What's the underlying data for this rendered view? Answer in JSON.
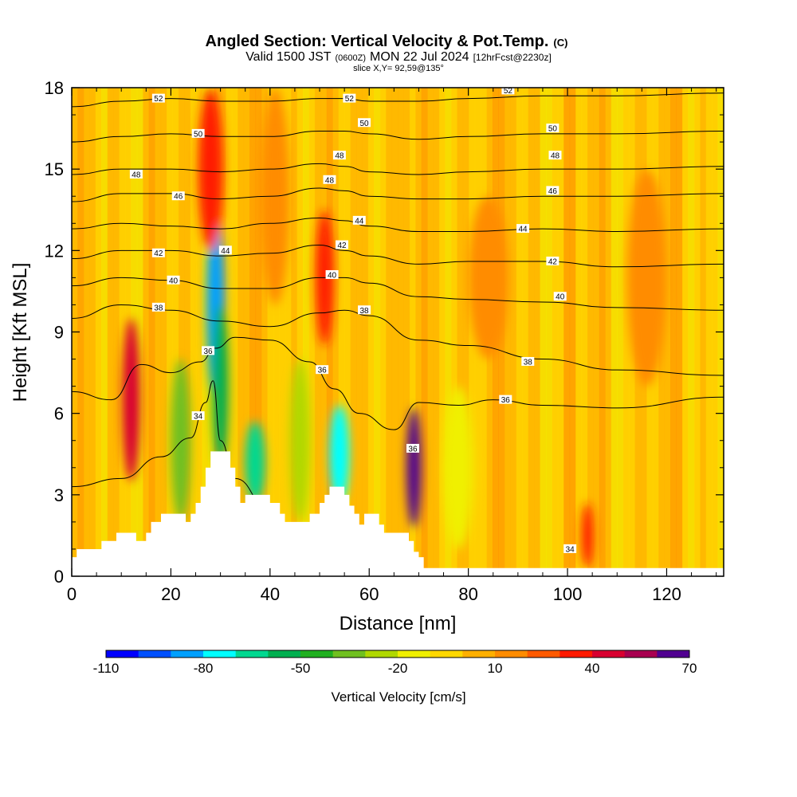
{
  "title": {
    "main": "Angled Section: Vertical Velocity & Pot.Temp.",
    "main_unit": "(C)",
    "valid_prefix": "Valid 1500 JST",
    "valid_utc": "(0600Z)",
    "valid_date": "MON 22 Jul 2024",
    "forecast": "[12hrFcst@2230z]",
    "slice": "slice X,Y= 92,59@135°"
  },
  "chart_data": {
    "type": "heatmap",
    "xlabel": "Distance [nm]",
    "ylabel": "Height [Kft MSL]",
    "xlim": [
      0,
      131.5
    ],
    "ylim": [
      0,
      18
    ],
    "x_ticks": [
      "0",
      "20",
      "40",
      "60",
      "80",
      "100",
      "120"
    ],
    "y_ticks": [
      "0",
      "3",
      "6",
      "9",
      "12",
      "15",
      "18"
    ],
    "colorbar": {
      "label": "Vertical Velocity [cm/s]",
      "tick_labels": [
        "-110",
        "-80",
        "-50",
        "-20",
        "10",
        "40",
        "70"
      ],
      "levels": [
        -110,
        -100,
        -90,
        -80,
        -70,
        -60,
        -50,
        -40,
        -30,
        -20,
        -10,
        0,
        10,
        20,
        30,
        40,
        50,
        60,
        70
      ],
      "colors": [
        "#0000ff",
        "#0050ff",
        "#00a0ff",
        "#00ffff",
        "#00d890",
        "#00b050",
        "#20b020",
        "#70c020",
        "#b0d800",
        "#f0f000",
        "#ffd800",
        "#ffb000",
        "#ff8c00",
        "#ff5a00",
        "#ff1a00",
        "#d80030",
        "#a80050",
        "#500090"
      ]
    },
    "terrain_kft": [
      [
        0,
        0.7
      ],
      [
        1,
        1.0
      ],
      [
        6,
        1.3
      ],
      [
        9,
        1.6
      ],
      [
        13,
        1.3
      ],
      [
        15,
        1.6
      ],
      [
        16,
        2.0
      ],
      [
        18,
        2.3
      ],
      [
        22,
        2.3
      ],
      [
        23,
        2.0
      ],
      [
        24,
        2.3
      ],
      [
        25,
        2.7
      ],
      [
        26,
        3.3
      ],
      [
        27,
        4.0
      ],
      [
        28,
        4.6
      ],
      [
        31,
        4.6
      ],
      [
        32,
        4.0
      ],
      [
        33,
        3.3
      ],
      [
        34,
        2.7
      ],
      [
        35,
        3.0
      ],
      [
        39,
        3.0
      ],
      [
        40,
        2.7
      ],
      [
        42,
        2.3
      ],
      [
        43,
        2.0
      ],
      [
        47,
        2.0
      ],
      [
        48,
        2.3
      ],
      [
        50,
        2.7
      ],
      [
        51,
        3.0
      ],
      [
        52,
        3.3
      ],
      [
        54,
        3.3
      ],
      [
        55,
        3.0
      ],
      [
        56,
        2.6
      ],
      [
        57,
        2.3
      ],
      [
        58,
        1.9
      ],
      [
        59,
        2.3
      ],
      [
        61,
        2.3
      ],
      [
        62,
        1.9
      ],
      [
        63,
        1.6
      ],
      [
        67,
        1.6
      ],
      [
        68,
        1.3
      ],
      [
        69,
        0.9
      ],
      [
        70,
        0.7
      ],
      [
        71,
        0.3
      ],
      [
        131.5,
        0.3
      ]
    ],
    "velocity_features": [
      {
        "x": 12,
        "y": 6.5,
        "w": 1.8,
        "h": 3.0,
        "v": 40
      },
      {
        "x": 29,
        "y": 10,
        "w": 1.8,
        "h": 3.5,
        "v": -90
      },
      {
        "x": 30,
        "y": 7,
        "w": 1.6,
        "h": 3.0,
        "v": -60
      },
      {
        "x": 28,
        "y": 15,
        "w": 2.5,
        "h": 3.0,
        "v": 35
      },
      {
        "x": 37,
        "y": 4.2,
        "w": 2.0,
        "h": 1.5,
        "v": -70
      },
      {
        "x": 54,
        "y": 4.5,
        "w": 2.0,
        "h": 1.8,
        "v": -80
      },
      {
        "x": 51,
        "y": 11,
        "w": 1.8,
        "h": 2.5,
        "v": 35
      },
      {
        "x": 69,
        "y": 4.0,
        "w": 1.5,
        "h": 2.2,
        "v": 65
      },
      {
        "x": 104,
        "y": 1.5,
        "w": 1.2,
        "h": 1.2,
        "v": 35
      },
      {
        "x": 41,
        "y": 14,
        "w": 3.0,
        "h": 4.0,
        "v": 15
      },
      {
        "x": 84,
        "y": 11,
        "w": 4.0,
        "h": 3.0,
        "v": 12
      },
      {
        "x": 116,
        "y": 11,
        "w": 4.0,
        "h": 4.0,
        "v": 10
      },
      {
        "x": 22,
        "y": 5,
        "w": 2.0,
        "h": 3.0,
        "v": -35
      },
      {
        "x": 46,
        "y": 5,
        "w": 2.0,
        "h": 3.0,
        "v": -25
      },
      {
        "x": 78,
        "y": 4,
        "w": 3.0,
        "h": 3.0,
        "v": -15
      }
    ],
    "theta_contours": [
      {
        "label": "34",
        "x": [
          0,
          10,
          18,
          24,
          27,
          28.5,
          30,
          33,
          40
        ],
        "y": [
          3.3,
          3.6,
          4.4,
          5.1,
          6.4,
          7.2,
          5.0,
          3.6,
          2.4
        ],
        "label_pos": [
          25.5,
          5.9
        ]
      },
      {
        "label": "36",
        "x": [
          0,
          8,
          14,
          20,
          26,
          29,
          33,
          40,
          48,
          53,
          58,
          65,
          70,
          78,
          85,
          95,
          110,
          131.5
        ],
        "y": [
          6.8,
          6.5,
          7.8,
          7.5,
          7.9,
          8.4,
          8.8,
          8.7,
          7.9,
          6.9,
          6.0,
          5.4,
          6.4,
          6.3,
          6.5,
          6.3,
          6.2,
          6.6
        ],
        "label_pos": [
          27.5,
          8.3
        ]
      },
      {
        "label": "38",
        "x": [
          0,
          10,
          20,
          30,
          40,
          50,
          55,
          60,
          70,
          80,
          95,
          110,
          131.5
        ],
        "y": [
          9.5,
          10.0,
          9.8,
          9.4,
          9.2,
          9.7,
          9.8,
          9.6,
          8.7,
          8.5,
          8.0,
          7.6,
          7.4
        ],
        "label_pos": [
          17.5,
          9.9
        ]
      },
      {
        "label": "40",
        "x": [
          0,
          10,
          20,
          30,
          40,
          50,
          55,
          60,
          70,
          80,
          95,
          110,
          131.5
        ],
        "y": [
          10.7,
          11.0,
          10.9,
          10.6,
          10.6,
          11.0,
          11.0,
          10.8,
          10.3,
          10.2,
          10.1,
          9.9,
          9.8
        ],
        "label_pos": [
          20.5,
          10.9
        ]
      },
      {
        "label": "42",
        "x": [
          0,
          10,
          20,
          30,
          40,
          50,
          55,
          60,
          70,
          80,
          95,
          110,
          131.5
        ],
        "y": [
          11.7,
          12.0,
          12.0,
          11.8,
          11.9,
          12.2,
          12.0,
          11.8,
          11.5,
          11.6,
          11.6,
          11.4,
          11.5
        ],
        "label_pos": [
          17.5,
          11.9
        ]
      },
      {
        "label": "44",
        "x": [
          0,
          10,
          20,
          30,
          40,
          50,
          55,
          60,
          70,
          80,
          95,
          110,
          131.5
        ],
        "y": [
          12.8,
          13.0,
          12.9,
          12.8,
          13.0,
          13.2,
          13.1,
          12.9,
          12.7,
          12.7,
          12.8,
          12.7,
          12.8
        ],
        "label_pos": [
          58,
          13.1
        ]
      },
      {
        "label": "46",
        "x": [
          0,
          10,
          20,
          30,
          40,
          50,
          55,
          60,
          70,
          80,
          95,
          110,
          131.5
        ],
        "y": [
          13.8,
          14.1,
          14.1,
          13.9,
          14.0,
          14.3,
          14.2,
          14.0,
          13.9,
          13.9,
          14.0,
          14.0,
          14.1
        ],
        "label_pos": [
          21.5,
          14.0
        ]
      },
      {
        "label": "48",
        "x": [
          0,
          10,
          20,
          30,
          40,
          50,
          55,
          60,
          70,
          80,
          95,
          110,
          131.5
        ],
        "y": [
          14.8,
          15.0,
          15.0,
          14.9,
          15.0,
          15.2,
          15.1,
          14.9,
          14.8,
          14.9,
          15.0,
          15.0,
          15.1
        ],
        "label_pos": [
          13,
          14.8
        ]
      },
      {
        "label": "50",
        "x": [
          0,
          10,
          20,
          30,
          40,
          50,
          55,
          60,
          70,
          80,
          95,
          110,
          131.5
        ],
        "y": [
          16.0,
          16.2,
          16.3,
          16.2,
          16.2,
          16.4,
          16.4,
          16.3,
          16.1,
          16.2,
          16.3,
          16.3,
          16.4
        ],
        "label_pos": [
          25.5,
          16.3
        ]
      },
      {
        "label": "52",
        "x": [
          0,
          10,
          20,
          30,
          40,
          50,
          55,
          60,
          70,
          80,
          95,
          110,
          131.5
        ],
        "y": [
          17.3,
          17.5,
          17.6,
          17.5,
          17.5,
          17.6,
          17.6,
          17.5,
          17.5,
          17.6,
          17.7,
          17.7,
          17.8
        ],
        "label_pos": [
          17.5,
          17.6
        ]
      }
    ],
    "extra_contour_labels": [
      {
        "label": "34",
        "x": 100.5,
        "y": 1.0
      },
      {
        "label": "36",
        "x": 68.8,
        "y": 4.7
      },
      {
        "label": "36",
        "x": 50.5,
        "y": 7.6
      },
      {
        "label": "36",
        "x": 87.5,
        "y": 6.5
      },
      {
        "label": "38",
        "x": 59.0,
        "y": 9.8
      },
      {
        "label": "38",
        "x": 92.0,
        "y": 7.9
      },
      {
        "label": "40",
        "x": 52.5,
        "y": 11.1
      },
      {
        "label": "40",
        "x": 98.5,
        "y": 10.3
      },
      {
        "label": "42",
        "x": 54.5,
        "y": 12.2
      },
      {
        "label": "42",
        "x": 97.0,
        "y": 11.6
      },
      {
        "label": "44",
        "x": 31.0,
        "y": 12.0
      },
      {
        "label": "44",
        "x": 91.0,
        "y": 12.8
      },
      {
        "label": "46",
        "x": 97.0,
        "y": 14.2
      },
      {
        "label": "48",
        "x": 52.0,
        "y": 14.6
      },
      {
        "label": "48",
        "x": 54.0,
        "y": 15.5
      },
      {
        "label": "48",
        "x": 97.5,
        "y": 15.5
      },
      {
        "label": "50",
        "x": 59.0,
        "y": 16.7
      },
      {
        "label": "50",
        "x": 97.0,
        "y": 16.5
      },
      {
        "label": "52",
        "x": 56.0,
        "y": 17.6
      },
      {
        "label": "52",
        "x": 88.0,
        "y": 17.9
      }
    ]
  }
}
